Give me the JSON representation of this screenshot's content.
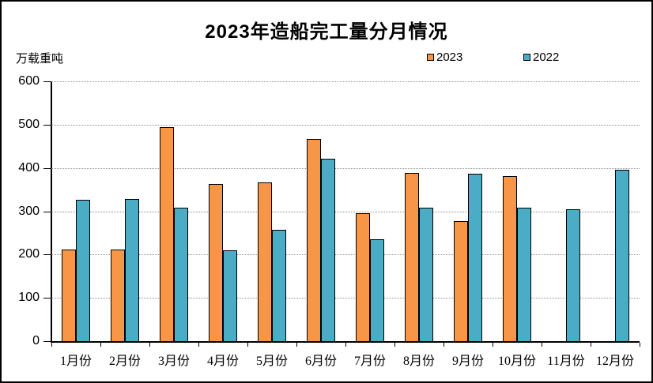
{
  "title": "2023年造船完工量分月情况",
  "unit_label": "万载重吨",
  "colors": {
    "series_2023": "#F79646",
    "series_2022": "#4BACC6",
    "bar_border": "#000000",
    "gridline": "#909090",
    "axis": "#000000",
    "background": "#FFFFFF"
  },
  "chart_data": {
    "type": "bar",
    "title": "2023年造船完工量分月情况",
    "ylabel": "万载重吨",
    "xlabel": "",
    "categories": [
      "1月份",
      "2月份",
      "3月份",
      "4月份",
      "5月份",
      "6月份",
      "7月份",
      "8月份",
      "9月份",
      "10月份",
      "11月份",
      "12月份"
    ],
    "series": [
      {
        "name": "2023",
        "color": "#F79646",
        "values": [
          211,
          212,
          494,
          363,
          367,
          466,
          296,
          389,
          277,
          381,
          null,
          null
        ]
      },
      {
        "name": "2022",
        "color": "#4BACC6",
        "values": [
          326,
          328,
          308,
          210,
          257,
          422,
          236,
          309,
          386,
          309,
          304,
          396
        ]
      }
    ],
    "ylim": [
      0,
      600
    ],
    "ytick_step": 100,
    "grid": "horizontal-dotted",
    "legend_position": "top"
  }
}
